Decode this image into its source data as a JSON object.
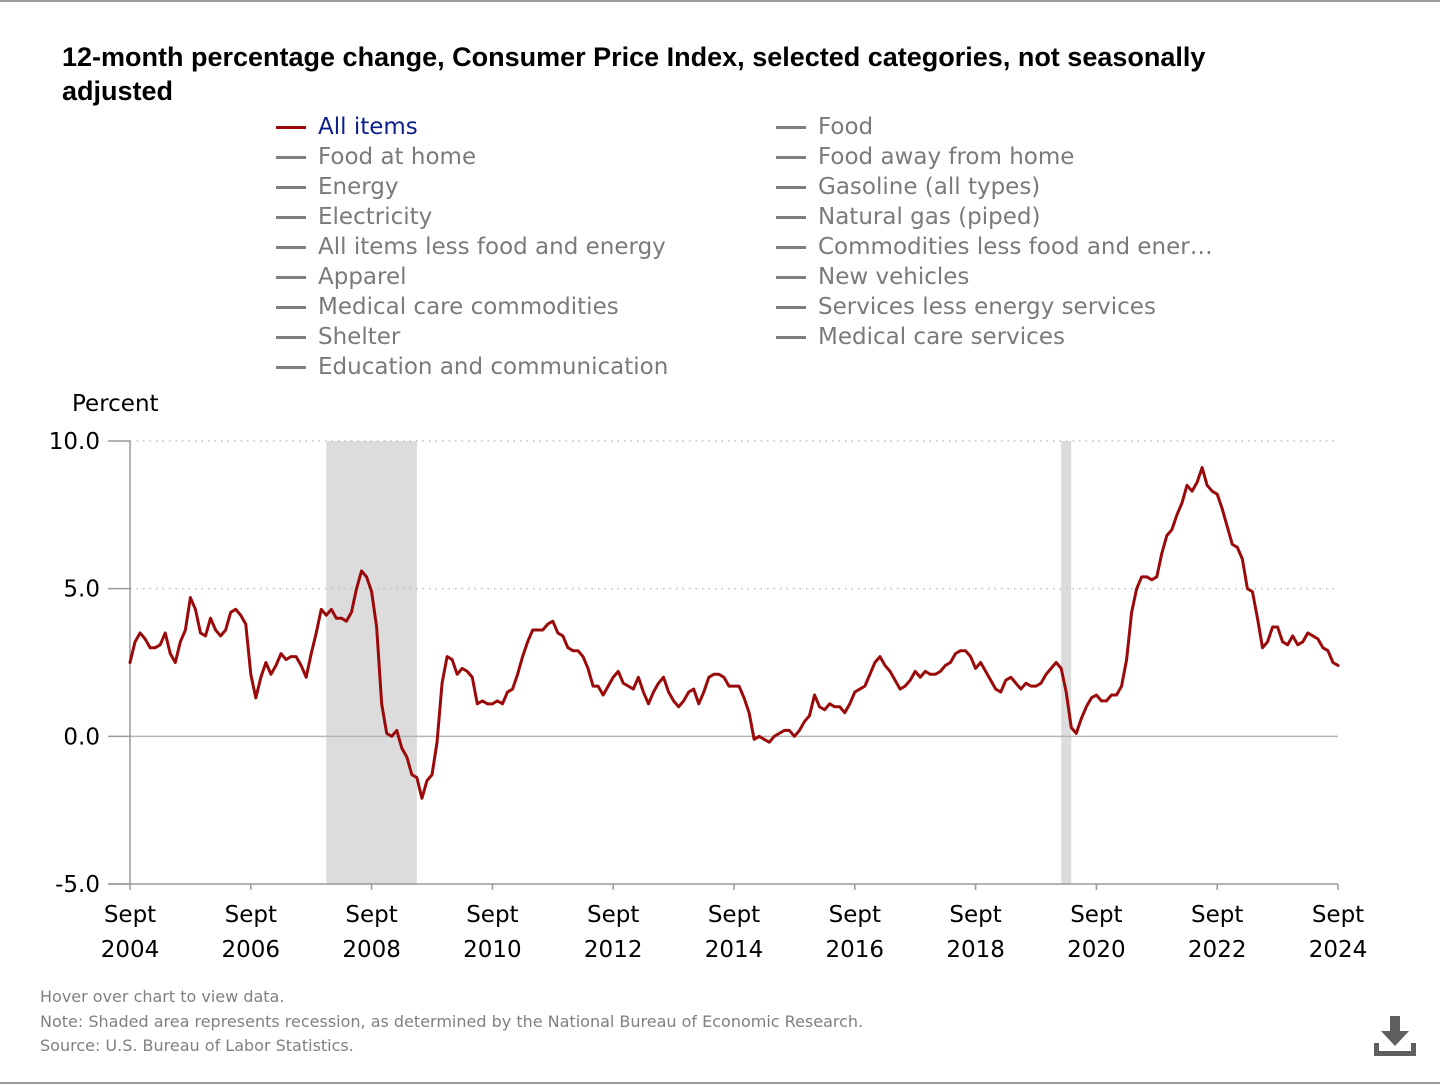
{
  "title": "12-month percentage change, Consumer Price Index, selected categories, not seasonally adjusted",
  "legend": [
    {
      "label": "All items",
      "active": true
    },
    {
      "label": "Food",
      "active": false
    },
    {
      "label": "Food at home",
      "active": false
    },
    {
      "label": "Food away from home",
      "active": false
    },
    {
      "label": "Energy",
      "active": false
    },
    {
      "label": "Gasoline (all types)",
      "active": false
    },
    {
      "label": "Electricity",
      "active": false
    },
    {
      "label": "Natural gas (piped)",
      "active": false
    },
    {
      "label": "All items less food and energy",
      "active": false
    },
    {
      "label": "Commodities less food and ener…",
      "active": false
    },
    {
      "label": "Apparel",
      "active": false
    },
    {
      "label": "New vehicles",
      "active": false
    },
    {
      "label": "Medical care commodities",
      "active": false
    },
    {
      "label": "Services less energy services",
      "active": false
    },
    {
      "label": "Shelter",
      "active": false
    },
    {
      "label": "Medical care services",
      "active": false
    },
    {
      "label": "Education and communication",
      "active": false
    }
  ],
  "colors": {
    "active_series": "#9b0a0a",
    "inactive_legend": "#7f7f7f",
    "recession": "#dcdcdc",
    "active_legend_text": "#0c1f8a"
  },
  "chart_data": {
    "type": "line",
    "ylabel": "Percent",
    "ylim": [
      -5.0,
      10.0
    ],
    "yticks": [
      "10.0",
      "5.0",
      "0.0",
      "-5.0"
    ],
    "xticks": [
      {
        "month": "Sept",
        "year": "2004"
      },
      {
        "month": "Sept",
        "year": "2006"
      },
      {
        "month": "Sept",
        "year": "2008"
      },
      {
        "month": "Sept",
        "year": "2010"
      },
      {
        "month": "Sept",
        "year": "2012"
      },
      {
        "month": "Sept",
        "year": "2014"
      },
      {
        "month": "Sept",
        "year": "2016"
      },
      {
        "month": "Sept",
        "year": "2018"
      },
      {
        "month": "Sept",
        "year": "2020"
      },
      {
        "month": "Sept",
        "year": "2022"
      },
      {
        "month": "Sept",
        "year": "2024"
      }
    ],
    "x_range": [
      "2004-09",
      "2024-09"
    ],
    "grid": "dotted horizontal at 10.0 and 5.0",
    "recessions": [
      {
        "start": "2007-12",
        "end": "2009-06"
      },
      {
        "start": "2020-02",
        "end": "2020-04"
      }
    ],
    "series": [
      {
        "name": "All items",
        "start": "2004-09",
        "frequency": "monthly",
        "values": [
          2.5,
          3.2,
          3.5,
          3.3,
          3.0,
          3.0,
          3.1,
          3.5,
          2.8,
          2.5,
          3.2,
          3.6,
          4.7,
          4.3,
          3.5,
          3.4,
          4.0,
          3.6,
          3.4,
          3.6,
          4.2,
          4.3,
          4.1,
          3.8,
          2.1,
          1.3,
          2.0,
          2.5,
          2.1,
          2.4,
          2.8,
          2.6,
          2.7,
          2.7,
          2.4,
          2.0,
          2.8,
          3.5,
          4.3,
          4.1,
          4.3,
          4.0,
          4.0,
          3.9,
          4.2,
          5.0,
          5.6,
          5.4,
          4.9,
          3.7,
          1.1,
          0.1,
          0.0,
          0.2,
          -0.4,
          -0.7,
          -1.3,
          -1.4,
          -2.1,
          -1.5,
          -1.3,
          -0.2,
          1.8,
          2.7,
          2.6,
          2.1,
          2.3,
          2.2,
          2.0,
          1.1,
          1.2,
          1.1,
          1.1,
          1.2,
          1.1,
          1.5,
          1.6,
          2.1,
          2.7,
          3.2,
          3.6,
          3.6,
          3.6,
          3.8,
          3.9,
          3.5,
          3.4,
          3.0,
          2.9,
          2.9,
          2.7,
          2.3,
          1.7,
          1.7,
          1.4,
          1.7,
          2.0,
          2.2,
          1.8,
          1.7,
          1.6,
          2.0,
          1.5,
          1.1,
          1.5,
          1.8,
          2.0,
          1.5,
          1.2,
          1.0,
          1.2,
          1.5,
          1.6,
          1.1,
          1.5,
          2.0,
          2.1,
          2.1,
          2.0,
          1.7,
          1.7,
          1.7,
          1.3,
          0.8,
          -0.1,
          0.0,
          -0.1,
          -0.2,
          0.0,
          0.1,
          0.2,
          0.2,
          0.0,
          0.2,
          0.5,
          0.7,
          1.4,
          1.0,
          0.9,
          1.1,
          1.0,
          1.0,
          0.8,
          1.1,
          1.5,
          1.6,
          1.7,
          2.1,
          2.5,
          2.7,
          2.4,
          2.2,
          1.9,
          1.6,
          1.7,
          1.9,
          2.2,
          2.0,
          2.2,
          2.1,
          2.1,
          2.2,
          2.4,
          2.5,
          2.8,
          2.9,
          2.9,
          2.7,
          2.3,
          2.5,
          2.2,
          1.9,
          1.6,
          1.5,
          1.9,
          2.0,
          1.8,
          1.6,
          1.8,
          1.7,
          1.7,
          1.8,
          2.1,
          2.3,
          2.5,
          2.3,
          1.5,
          0.3,
          0.1,
          0.6,
          1.0,
          1.3,
          1.4,
          1.2,
          1.2,
          1.4,
          1.4,
          1.7,
          2.6,
          4.2,
          5.0,
          5.4,
          5.4,
          5.3,
          5.4,
          6.2,
          6.8,
          7.0,
          7.5,
          7.9,
          8.5,
          8.3,
          8.6,
          9.1,
          8.5,
          8.3,
          8.2,
          7.7,
          7.1,
          6.5,
          6.4,
          6.0,
          5.0,
          4.9,
          4.0,
          3.0,
          3.2,
          3.7,
          3.7,
          3.2,
          3.1,
          3.4,
          3.1,
          3.2,
          3.5,
          3.4,
          3.3,
          3.0,
          2.9,
          2.5,
          2.4
        ]
      }
    ]
  },
  "footer": {
    "hover": "Hover over chart to view data.",
    "note": "Note: Shaded area represents recession, as determined by the National Bureau of Economic Research.",
    "source": "Source: U.S. Bureau of Labor Statistics."
  },
  "icons": {
    "download": "download-icon"
  }
}
